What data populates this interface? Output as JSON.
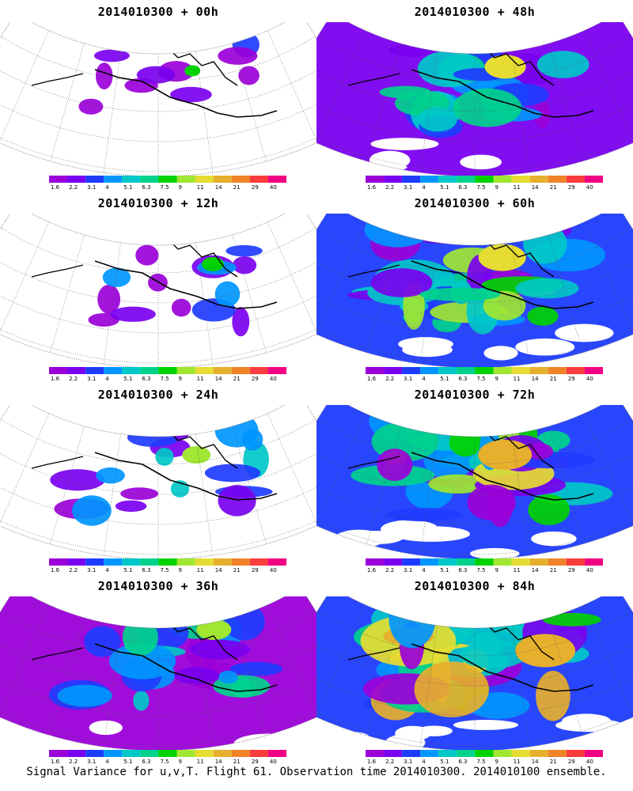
{
  "footer": "Signal Variance for u,v,T. Flight 61. Observation time 2014010300. 2014010100 ensemble.",
  "colorbar": {
    "labels": [
      "1.6",
      "2.2",
      "3.1",
      "4",
      "5.1",
      "6.3",
      "7.5",
      "9",
      "11",
      "14",
      "21",
      "29",
      "40"
    ],
    "colors": [
      "#9b00d9",
      "#7a00f0",
      "#1e3cff",
      "#0096ff",
      "#00c8c8",
      "#00d28c",
      "#00d200",
      "#a0e632",
      "#e6dc32",
      "#e6af2d",
      "#f08228",
      "#fa3c3c",
      "#f00082"
    ]
  },
  "panels": [
    {
      "title": "2014010300 + 00h",
      "level": 0
    },
    {
      "title": "2014010300 + 48h",
      "level": 4
    },
    {
      "title": "2014010300 + 12h",
      "level": 1
    },
    {
      "title": "2014010300 + 60h",
      "level": 5
    },
    {
      "title": "2014010300 + 24h",
      "level": 2
    },
    {
      "title": "2014010300 + 72h",
      "level": 6
    },
    {
      "title": "2014010300 + 36h",
      "level": 3
    },
    {
      "title": "2014010300 + 84h",
      "level": 7
    }
  ]
}
